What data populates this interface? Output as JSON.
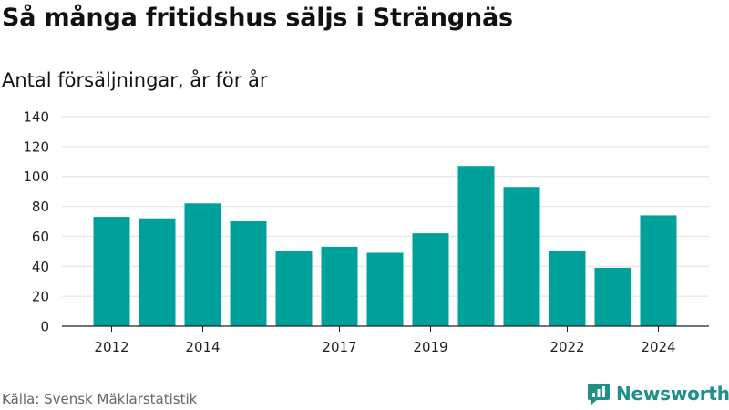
{
  "header": {
    "title": "Så många fritidshus säljs i Strängnäs",
    "subtitle": "Antal försäljningar, år för år"
  },
  "footer": {
    "source": "Källa: Svensk Mäklarstatistik",
    "brand": "Newsworthy"
  },
  "colors": {
    "bar": "#00a19a",
    "grid": "#e0e0e0",
    "axis": "#222222",
    "brand": "#1f8f88"
  },
  "chart_data": {
    "type": "bar",
    "categories": [
      "2012",
      "2013",
      "2014",
      "2015",
      "2016",
      "2017",
      "2018",
      "2019",
      "2020",
      "2021",
      "2022",
      "2023",
      "2024"
    ],
    "values": [
      73,
      72,
      82,
      70,
      50,
      53,
      49,
      62,
      107,
      93,
      50,
      39,
      74
    ],
    "x_tick_labels": [
      "2012",
      "2014",
      "2017",
      "2019",
      "2022",
      "2024"
    ],
    "ylim": [
      0,
      140
    ],
    "y_ticks": [
      0,
      20,
      40,
      60,
      80,
      100,
      120,
      140
    ],
    "grid": true
  }
}
